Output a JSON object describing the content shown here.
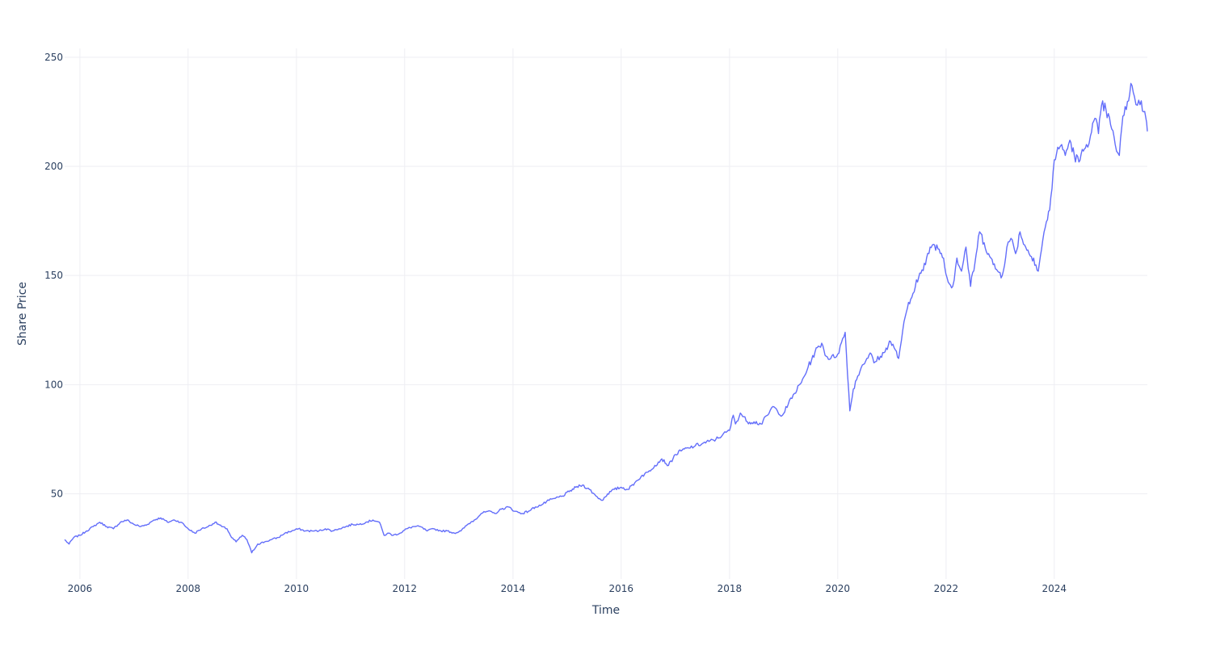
{
  "chart_data": {
    "type": "line",
    "title": "",
    "xlabel": "Time",
    "ylabel": "Share Price",
    "x_ticks": [
      "2006",
      "2008",
      "2010",
      "2012",
      "2014",
      "2016",
      "2018",
      "2020",
      "2022",
      "2024"
    ],
    "y_ticks": [
      "50",
      "100",
      "150",
      "200",
      "250"
    ],
    "xlim": [
      "2005-09-20",
      "2025-09-20"
    ],
    "ylim": [
      11,
      254
    ],
    "grid": true,
    "legend": "none",
    "color": "#636efa",
    "series": [
      {
        "x": [
          "2005-09-20",
          "2005-10-20",
          "2005-11-20",
          "2006-01-01",
          "2006-02-15",
          "2006-04-01",
          "2006-05-15",
          "2006-07-01",
          "2006-08-15",
          "2006-10-01",
          "2006-11-15",
          "2007-01-01",
          "2007-02-15",
          "2007-04-01",
          "2007-05-15",
          "2007-07-01",
          "2007-08-15",
          "2007-10-01",
          "2007-11-15",
          "2008-01-01",
          "2008-02-15",
          "2008-04-01",
          "2008-05-15",
          "2008-07-01",
          "2008-08-15",
          "2008-09-20",
          "2008-10-20",
          "2008-11-20",
          "2009-01-01",
          "2009-02-01",
          "2009-03-05",
          "2009-04-15",
          "2009-06-01",
          "2009-07-15",
          "2009-09-01",
          "2009-10-15",
          "2009-12-01",
          "2010-01-15",
          "2010-03-01",
          "2010-04-15",
          "2010-06-01",
          "2010-07-15",
          "2010-09-01",
          "2010-10-15",
          "2010-12-01",
          "2011-01-15",
          "2011-03-01",
          "2011-04-15",
          "2011-06-01",
          "2011-07-15",
          "2011-08-15",
          "2011-09-15",
          "2011-10-15",
          "2011-12-01",
          "2012-01-15",
          "2012-03-01",
          "2012-04-15",
          "2012-06-01",
          "2012-07-15",
          "2012-09-01",
          "2012-10-15",
          "2012-12-01",
          "2013-01-15",
          "2013-03-01",
          "2013-04-15",
          "2013-06-01",
          "2013-07-15",
          "2013-09-01",
          "2013-10-15",
          "2013-12-01",
          "2014-01-15",
          "2014-03-01",
          "2014-04-15",
          "2014-06-01",
          "2014-07-15",
          "2014-09-01",
          "2014-10-15",
          "2014-12-01",
          "2015-01-15",
          "2015-03-01",
          "2015-04-15",
          "2015-06-01",
          "2015-07-15",
          "2015-08-25",
          "2015-10-01",
          "2015-11-15",
          "2016-01-01",
          "2016-02-15",
          "2016-04-01",
          "2016-05-15",
          "2016-07-01",
          "2016-08-15",
          "2016-10-01",
          "2016-11-15",
          "2017-01-01",
          "2017-02-15",
          "2017-04-01",
          "2017-05-15",
          "2017-07-01",
          "2017-08-15",
          "2017-10-01",
          "2017-11-15",
          "2018-01-01",
          "2018-01-26",
          "2018-02-10",
          "2018-03-15",
          "2018-05-01",
          "2018-06-15",
          "2018-08-01",
          "2018-09-15",
          "2018-10-20",
          "2018-11-20",
          "2018-12-24",
          "2019-02-01",
          "2019-03-15",
          "2019-05-01",
          "2019-06-15",
          "2019-08-01",
          "2019-09-15",
          "2019-10-15",
          "2019-11-15",
          "2020-01-01",
          "2020-02-20",
          "2020-03-23",
          "2020-04-15",
          "2020-05-15",
          "2020-06-15",
          "2020-07-15",
          "2020-08-15",
          "2020-09-01",
          "2020-10-15",
          "2020-11-15",
          "2020-12-15",
          "2021-01-15",
          "2021-02-15",
          "2021-03-15",
          "2021-04-15",
          "2021-05-15",
          "2021-06-15",
          "2021-07-15",
          "2021-08-15",
          "2021-09-15",
          "2021-10-15",
          "2021-11-15",
          "2021-12-15",
          "2022-01-15",
          "2022-02-15",
          "2022-03-15",
          "2022-04-15",
          "2022-05-15",
          "2022-06-15",
          "2022-07-15",
          "2022-08-15",
          "2022-09-15",
          "2022-10-15",
          "2022-11-15",
          "2022-12-15",
          "2023-01-15",
          "2023-02-15",
          "2023-03-15",
          "2023-04-15",
          "2023-05-15",
          "2023-06-15",
          "2023-07-15",
          "2023-08-15",
          "2023-09-15",
          "2023-10-15",
          "2023-11-01",
          "2023-12-01",
          "2024-01-01",
          "2024-02-01",
          "2024-02-20",
          "2024-03-15",
          "2024-04-15",
          "2024-05-15",
          "2024-06-15",
          "2024-07-15",
          "2024-08-05",
          "2024-09-01",
          "2024-10-01",
          "2024-10-25",
          "2024-11-15",
          "2024-12-15",
          "2025-01-15",
          "2025-02-15",
          "2025-03-15",
          "2025-04-08",
          "2025-05-01",
          "2025-06-01",
          "2025-06-25",
          "2025-07-15",
          "2025-08-10",
          "2025-08-25",
          "2025-09-10",
          "2025-09-20"
        ],
        "y": [
          29,
          27,
          30,
          31,
          33,
          35,
          37,
          35,
          34,
          37,
          38,
          36,
          35,
          36,
          38,
          39,
          37,
          38,
          37,
          34,
          32,
          34,
          35,
          37,
          35,
          34,
          30,
          28,
          31,
          29,
          23,
          27,
          28,
          29,
          30,
          32,
          33,
          34,
          33,
          33,
          33,
          34,
          33,
          34,
          35,
          36,
          36,
          37,
          38,
          37,
          31,
          32,
          31,
          32,
          34,
          35,
          35,
          33,
          34,
          33,
          33,
          32,
          33,
          36,
          38,
          41,
          42,
          41,
          43,
          44,
          42,
          41,
          42,
          44,
          45,
          47,
          48,
          49,
          51,
          53,
          54,
          52,
          49,
          47,
          50,
          52,
          53,
          52,
          55,
          58,
          60,
          63,
          66,
          63,
          68,
          70,
          71,
          72,
          73,
          74,
          75,
          77,
          79,
          86,
          82,
          87,
          83,
          83,
          82,
          86,
          90,
          88,
          86,
          91,
          96,
          101,
          108,
          115,
          119,
          113,
          112,
          114,
          124,
          88,
          98,
          104,
          109,
          112,
          114,
          110,
          113,
          115,
          120,
          117,
          112,
          125,
          135,
          140,
          148,
          151,
          155,
          163,
          164,
          162,
          158,
          147,
          145,
          158,
          152,
          163,
          145,
          156,
          170,
          165,
          160,
          155,
          152,
          150,
          163,
          167,
          160,
          170,
          164,
          160,
          158,
          152,
          166,
          172,
          180,
          203,
          208,
          210,
          205,
          212,
          205,
          202,
          207,
          210,
          214,
          222,
          215,
          228,
          226,
          219,
          210,
          205,
          223,
          226,
          238,
          232,
          228,
          230,
          225,
          222,
          216
        ]
      }
    ]
  }
}
